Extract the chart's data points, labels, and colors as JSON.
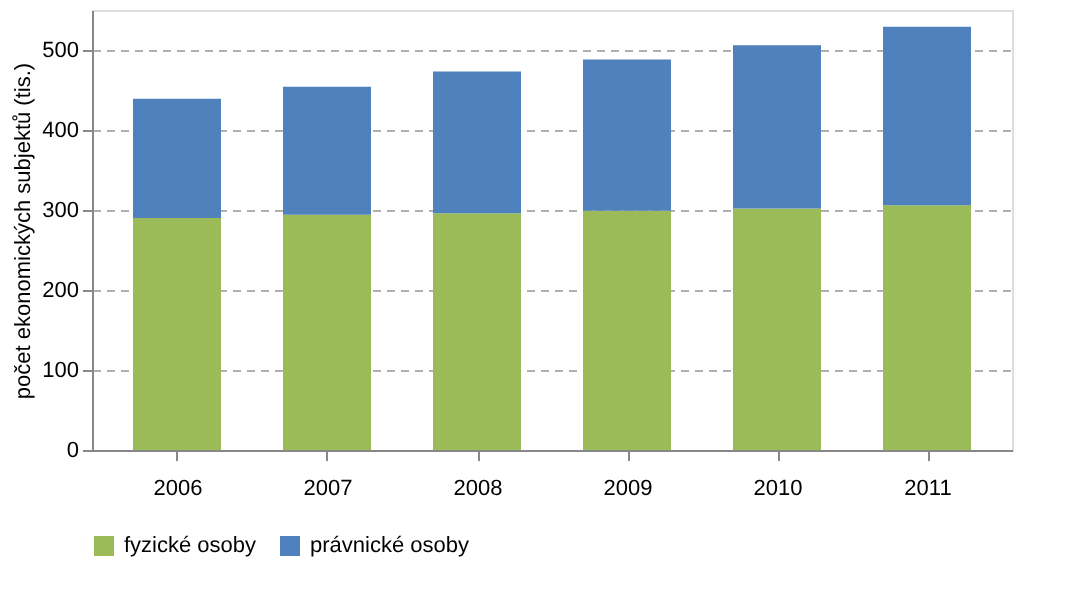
{
  "chart_data": {
    "type": "bar",
    "stacked": true,
    "ylabel": "počet ekonomických subjektů (tis.)",
    "categories": [
      "2006",
      "2007",
      "2008",
      "2009",
      "2010",
      "2011"
    ],
    "series": [
      {
        "name": "fyzické osoby",
        "color": "#9bbb59",
        "values": [
          290,
          294,
          296,
          299,
          302,
          306
        ]
      },
      {
        "name": "právnické osoby",
        "color": "#4f81bd",
        "values": [
          149,
          160,
          177,
          189,
          204,
          223
        ]
      }
    ],
    "ylim": [
      0,
      550
    ],
    "yticks": [
      0,
      100,
      200,
      300,
      400,
      500
    ],
    "grid": "y",
    "legend": "bottom"
  }
}
